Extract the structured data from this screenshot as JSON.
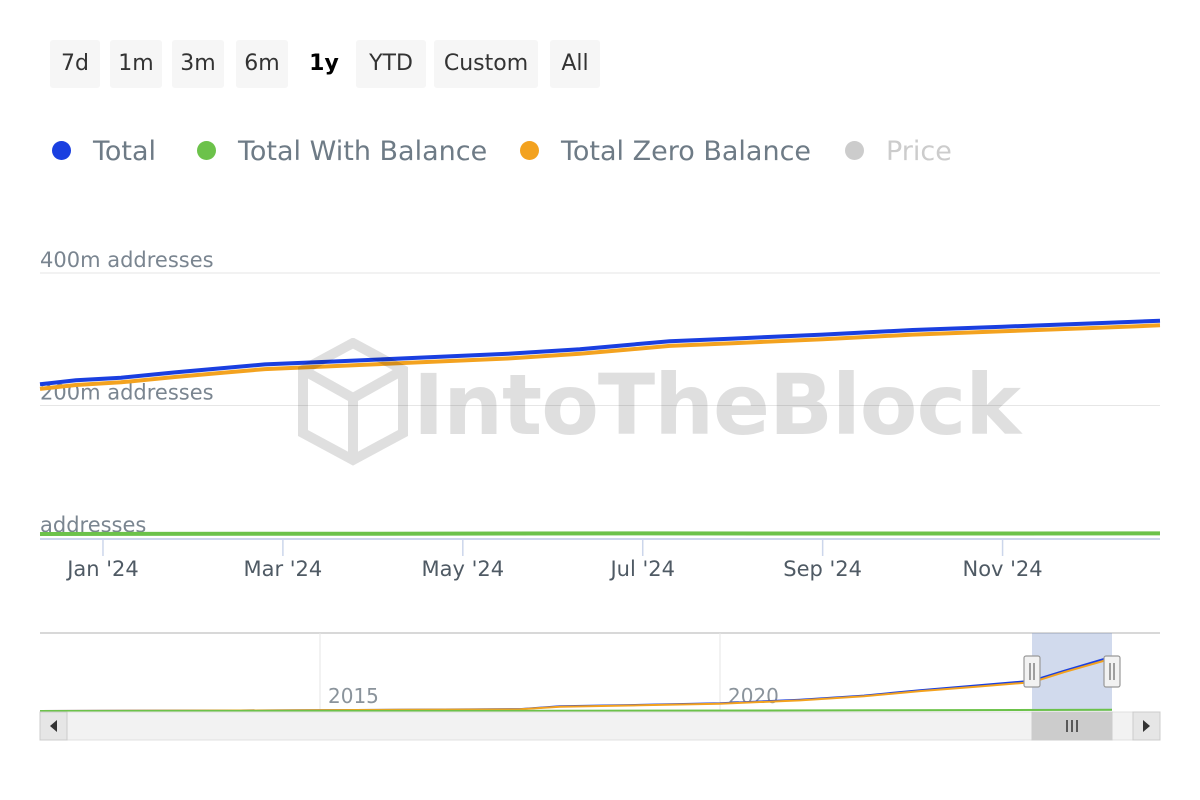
{
  "range_buttons": [
    {
      "label": "7d",
      "selected": false
    },
    {
      "label": "1m",
      "selected": false
    },
    {
      "label": "3m",
      "selected": false
    },
    {
      "label": "6m",
      "selected": false
    },
    {
      "label": "1y",
      "selected": true
    },
    {
      "label": "YTD",
      "selected": false
    },
    {
      "label": "Custom",
      "selected": false
    },
    {
      "label": "All",
      "selected": false
    }
  ],
  "legend": [
    {
      "label": "Total",
      "color": "#1a3fe0",
      "enabled": true
    },
    {
      "label": "Total With Balance",
      "color": "#6cc24a",
      "enabled": true
    },
    {
      "label": "Total Zero Balance",
      "color": "#f3a21f",
      "enabled": true
    },
    {
      "label": "Price",
      "color": "#cccccc",
      "enabled": false
    }
  ],
  "watermark": "IntoTheBlock",
  "chart_data": {
    "type": "line",
    "y_unit": "m addresses",
    "y_ticks": [
      "400m addresses",
      "200m addresses",
      "addresses"
    ],
    "ylim": [
      0,
      400
    ],
    "x_ticks": [
      "Jan '24",
      "Mar '24",
      "May '24",
      "Jul '24",
      "Sep '24",
      "Nov '24"
    ],
    "x_tick_months": [
      0,
      2,
      4,
      6,
      8,
      10
    ],
    "xlim_months": [
      -0.7,
      11.75
    ],
    "grid": true,
    "series": [
      {
        "name": "Total",
        "color": "#1a3fe0",
        "points": [
          [
            -0.7,
            232
          ],
          [
            -0.3,
            238
          ],
          [
            0.2,
            242
          ],
          [
            0.8,
            250
          ],
          [
            1.3,
            256
          ],
          [
            1.8,
            262
          ],
          [
            2.5,
            266
          ],
          [
            3.5,
            272
          ],
          [
            4.5,
            278
          ],
          [
            5.3,
            285
          ],
          [
            5.8,
            291
          ],
          [
            6.3,
            297
          ],
          [
            7.0,
            301
          ],
          [
            8.0,
            307
          ],
          [
            9.0,
            314
          ],
          [
            10.0,
            319
          ],
          [
            11.0,
            324
          ],
          [
            11.75,
            328
          ]
        ]
      },
      {
        "name": "Total Zero Balance",
        "color": "#f3a21f",
        "points": [
          [
            -0.7,
            225
          ],
          [
            -0.3,
            231
          ],
          [
            0.2,
            235
          ],
          [
            0.8,
            243
          ],
          [
            1.3,
            249
          ],
          [
            1.8,
            255
          ],
          [
            2.5,
            259
          ],
          [
            3.5,
            265
          ],
          [
            4.5,
            271
          ],
          [
            5.3,
            278
          ],
          [
            5.8,
            284
          ],
          [
            6.3,
            290
          ],
          [
            7.0,
            294
          ],
          [
            8.0,
            300
          ],
          [
            9.0,
            307
          ],
          [
            10.0,
            312
          ],
          [
            11.0,
            317
          ],
          [
            11.75,
            321
          ]
        ]
      },
      {
        "name": "Total With Balance",
        "color": "#6cc24a",
        "points": [
          [
            -0.7,
            6
          ],
          [
            3.0,
            6.5
          ],
          [
            6.0,
            7
          ],
          [
            9.0,
            6.8
          ],
          [
            11.75,
            7
          ]
        ]
      }
    ],
    "navigator": {
      "x_ticks": [
        "2015",
        "2020"
      ],
      "tick_years": [
        2015,
        2020
      ],
      "xlim_years": [
        2011.5,
        2025.5
      ],
      "ylim": [
        0,
        330
      ],
      "selection_years": [
        2023.9,
        2024.9
      ],
      "series": [
        {
          "name": "Total",
          "color": "#1a3fe0",
          "points": [
            [
              2011.5,
              0
            ],
            [
              2014,
              2
            ],
            [
              2016,
              5
            ],
            [
              2017.5,
              8
            ],
            [
              2018,
              20
            ],
            [
              2019,
              26
            ],
            [
              2020,
              33
            ],
            [
              2021,
              48
            ],
            [
              2021.8,
              65
            ],
            [
              2022.5,
              88
            ],
            [
              2023.2,
              108
            ],
            [
              2023.9,
              128
            ],
            [
              2024.3,
              170
            ],
            [
              2024.9,
              230
            ]
          ]
        },
        {
          "name": "Total Zero Balance",
          "color": "#f3a21f",
          "points": [
            [
              2011.5,
              0
            ],
            [
              2014,
              2
            ],
            [
              2016,
              5
            ],
            [
              2017.5,
              7
            ],
            [
              2018,
              18
            ],
            [
              2019,
              24
            ],
            [
              2020,
              31
            ],
            [
              2021,
              45
            ],
            [
              2021.8,
              62
            ],
            [
              2022.5,
              84
            ],
            [
              2023.2,
              103
            ],
            [
              2023.9,
              122
            ],
            [
              2024.3,
              164
            ],
            [
              2024.9,
              222
            ]
          ]
        },
        {
          "name": "Total With Balance",
          "color": "#6cc24a",
          "points": [
            [
              2011.5,
              0
            ],
            [
              2018,
              1
            ],
            [
              2022,
              3
            ],
            [
              2024.9,
              5
            ]
          ]
        }
      ]
    }
  }
}
